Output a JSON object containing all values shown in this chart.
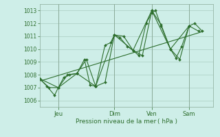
{
  "xlabel": "Pression niveau de la mer ( hPa )",
  "background_color": "#ceeee8",
  "grid_color": "#aaccc0",
  "line_color": "#2d6e2d",
  "ylim": [
    1005.5,
    1013.5
  ],
  "yticks": [
    1006,
    1007,
    1008,
    1009,
    1010,
    1011,
    1012,
    1013
  ],
  "xtick_labels": [
    "Jeu",
    "Dim",
    "Ven",
    "Sam"
  ],
  "xtick_positions": [
    1,
    4,
    6,
    8
  ],
  "xlim": [
    0,
    9.3
  ],
  "lines": [
    {
      "x": [
        0,
        0.4,
        0.8,
        1.0,
        1.3,
        1.6,
        2.0,
        2.4,
        2.7,
        3.0,
        3.5,
        3.8,
        4.0,
        4.3,
        4.7,
        5.0,
        5.3,
        5.7,
        6.0,
        6.2,
        6.5,
        7.0,
        7.3,
        7.6,
        8.0,
        8.3,
        8.7
      ],
      "y": [
        1007.7,
        1007.1,
        1006.4,
        1007.0,
        1007.8,
        1008.0,
        1008.1,
        1009.2,
        1007.2,
        1007.1,
        1010.3,
        1010.5,
        1011.1,
        1010.9,
        1010.2,
        1009.9,
        1009.5,
        1012.0,
        1012.8,
        1013.0,
        1011.8,
        1010.0,
        1009.3,
        1010.2,
        1011.8,
        1012.0,
        1011.4
      ],
      "marker": true
    },
    {
      "x": [
        0,
        0.5,
        1.0,
        1.5,
        2.0,
        2.5,
        3.0,
        3.5,
        4.0,
        4.5,
        5.0,
        5.5,
        6.0,
        6.5,
        7.0,
        7.5,
        8.0,
        8.5
      ],
      "y": [
        1007.7,
        1007.0,
        1007.0,
        1008.0,
        1008.1,
        1009.2,
        1007.1,
        1007.4,
        1011.1,
        1011.0,
        1009.9,
        1009.5,
        1013.0,
        1011.9,
        1010.0,
        1009.2,
        1011.8,
        1011.4
      ],
      "marker": true
    },
    {
      "x": [
        0,
        1.0,
        2.0,
        3.0,
        4.0,
        5.0,
        6.0,
        7.0,
        8.0
      ],
      "y": [
        1007.7,
        1007.0,
        1008.1,
        1007.1,
        1011.1,
        1009.9,
        1013.0,
        1010.0,
        1011.8
      ],
      "marker": true
    },
    {
      "x": [
        0,
        8.7
      ],
      "y": [
        1007.5,
        1011.35
      ],
      "marker": false
    }
  ]
}
